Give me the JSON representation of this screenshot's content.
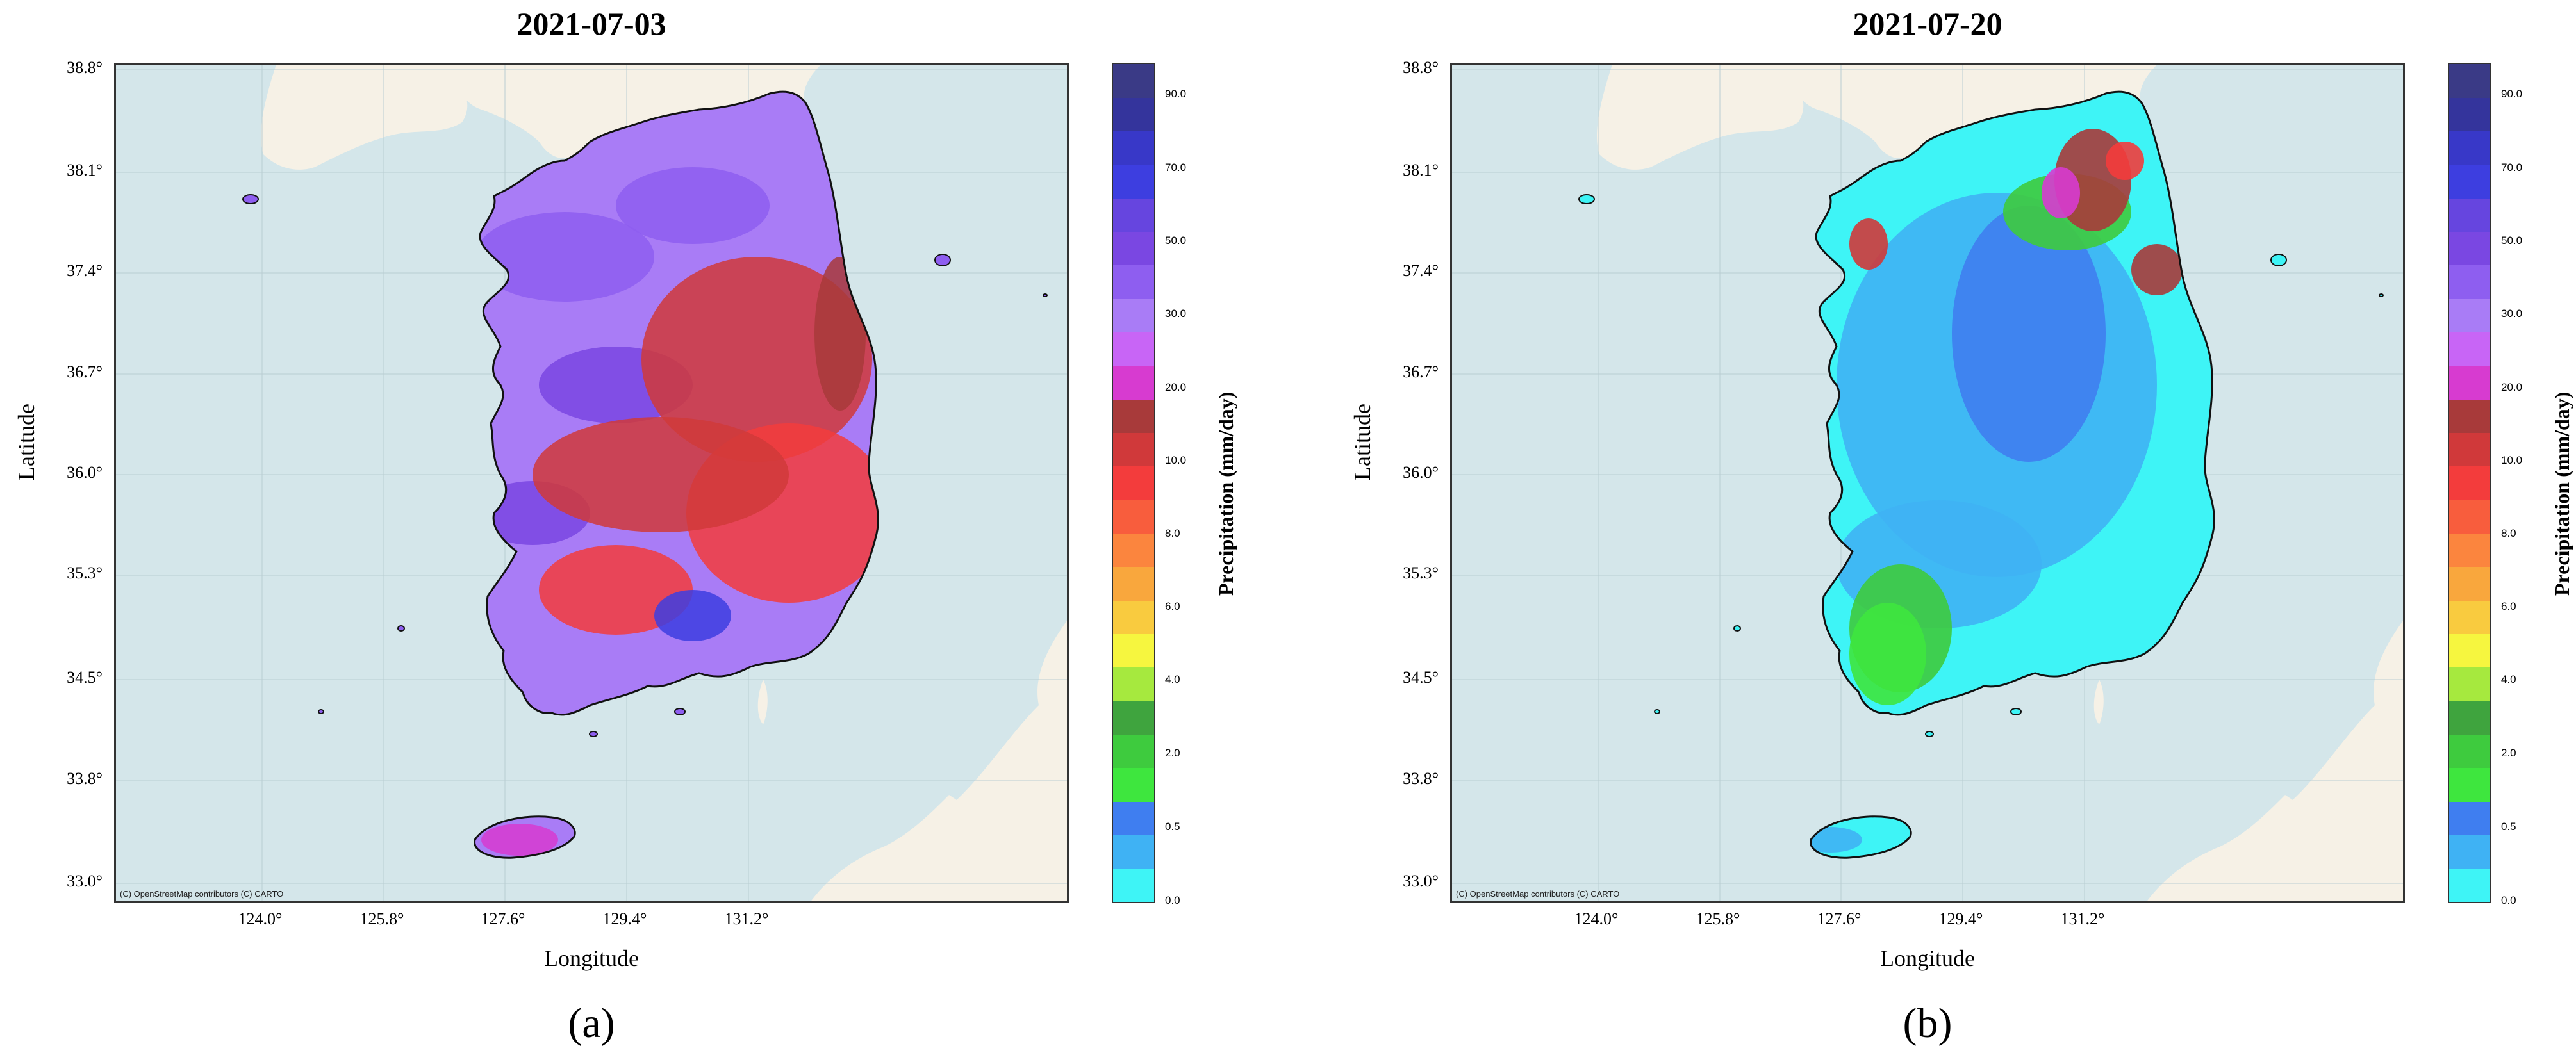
{
  "panels": [
    {
      "title": "2021-07-03",
      "sublabel": "(a)",
      "pattern": "high",
      "xlabel": "Longitude",
      "ylabel": "Latitude",
      "x_ticks": [
        "124.0°",
        "125.8°",
        "127.6°",
        "129.4°",
        "131.2°"
      ],
      "y_ticks": [
        "38.8°",
        "38.1°",
        "37.4°",
        "36.7°",
        "36.0°",
        "35.3°",
        "34.5°",
        "33.8°",
        "33.0°"
      ],
      "colorbar_label": "Precipitation (mm/day)",
      "credit": "(C) OpenStreetMap contributors (C) CARTO"
    },
    {
      "title": "2021-07-20",
      "sublabel": "(b)",
      "pattern": "low",
      "xlabel": "Longitude",
      "ylabel": "Latitude",
      "x_ticks": [
        "124.0°",
        "125.8°",
        "127.6°",
        "129.4°",
        "131.2°"
      ],
      "y_ticks": [
        "38.8°",
        "38.1°",
        "37.4°",
        "36.7°",
        "36.0°",
        "35.3°",
        "34.5°",
        "33.8°",
        "33.0°"
      ],
      "colorbar_label": "Precipitation (mm/day)",
      "credit": "(C) OpenStreetMap contributors (C) CARTO"
    }
  ],
  "colorbar": {
    "colors": [
      "#3ef4f6",
      "#3fb2f4",
      "#3f7ef0",
      "#3ee63e",
      "#3ecb3e",
      "#3fa43e",
      "#a6e93e",
      "#f6f63f",
      "#f9cb3f",
      "#f9a73d",
      "#fb853e",
      "#f85d3d",
      "#f33c3c",
      "#d0393a",
      "#a83a3a",
      "#d73bd0",
      "#c865f6",
      "#a97cf6",
      "#8e5ef0",
      "#7a47e2",
      "#6645df",
      "#3d3ee0",
      "#3838c8",
      "#34349c",
      "#3a3a86"
    ],
    "tick_labels": [
      "0.0",
      "0.5",
      "2.0",
      "4.0",
      "6.0",
      "8.0",
      "10.0",
      "20.0",
      "30.0",
      "50.0",
      "70.0",
      "90.0"
    ]
  },
  "map_colors": {
    "sea": "#d4e6ea",
    "land_background": "#f6f1e6",
    "coastline": "#111111"
  }
}
